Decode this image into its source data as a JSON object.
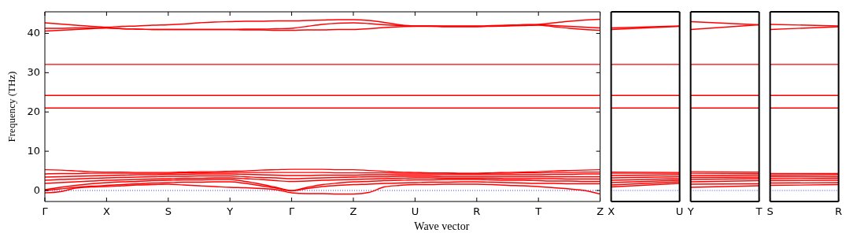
{
  "chart_data": [
    {
      "type": "line",
      "xlabel": "Wave vector",
      "ylabel": "Frequency (THz)",
      "ylim": [
        -2.8,
        45.5
      ],
      "yticks": [
        0,
        10,
        20,
        30,
        40
      ],
      "categories": [
        "Γ",
        null,
        null,
        null,
        "X",
        null,
        null,
        null,
        "S",
        null,
        null,
        null,
        "Y",
        null,
        null,
        null,
        "Γ",
        null,
        null,
        null,
        "Z",
        null,
        null,
        null,
        "U",
        null,
        null,
        null,
        "R",
        null,
        null,
        null,
        "T",
        null,
        null,
        null,
        "Z"
      ],
      "ref_lines": [
        {
          "axis": "y",
          "value": 0,
          "color": "#0000ff",
          "line_style": "dotted"
        }
      ],
      "series": [
        {
          "color": "#ff0000",
          "values": [
            42.7,
            42.4,
            42.1,
            41.8,
            41.6,
            41.8,
            41.9,
            42.1,
            42.2,
            42.4,
            42.7,
            42.9,
            43.0,
            43.1,
            43.1,
            43.2,
            43.2,
            43.3,
            43.4,
            43.5,
            43.5,
            43.3,
            42.8,
            42.2,
            41.9,
            41.9,
            41.8,
            41.8,
            41.8,
            41.9,
            42.0,
            42.2,
            42.3,
            42.7,
            43.1,
            43.4,
            43.6
          ]
        },
        {
          "color": "#ff0000",
          "values": [
            41.3,
            41.3,
            41.4,
            41.4,
            41.4,
            41.2,
            41.1,
            41.0,
            41.0,
            41.0,
            41.0,
            41.0,
            41.0,
            41.1,
            41.1,
            41.2,
            41.3,
            41.8,
            42.3,
            42.6,
            42.7,
            42.5,
            42.2,
            42.0,
            41.9,
            41.9,
            41.9,
            41.9,
            41.9,
            42.0,
            42.1,
            42.2,
            42.2,
            42.0,
            41.8,
            41.6,
            41.4
          ]
        },
        {
          "color": "#ff0000",
          "values": [
            40.6,
            40.8,
            41.0,
            41.2,
            41.4,
            41.2,
            41.1,
            41.0,
            41.0,
            41.0,
            41.0,
            41.0,
            41.0,
            40.9,
            40.9,
            40.8,
            40.8,
            40.9,
            40.9,
            41.0,
            41.0,
            41.2,
            41.5,
            41.7,
            41.8,
            41.8,
            41.7,
            41.7,
            41.7,
            41.8,
            41.9,
            42.0,
            42.1,
            41.7,
            41.3,
            41.0,
            40.8
          ]
        },
        {
          "color": "#ff0000",
          "values": [
            32.1,
            32.1,
            32.1,
            32.1,
            32.1,
            32.1,
            32.1,
            32.1,
            32.1,
            32.1,
            32.1,
            32.1,
            32.1,
            32.1,
            32.1,
            32.1,
            32.1,
            32.1,
            32.1,
            32.1,
            32.1,
            32.1,
            32.1,
            32.1,
            32.1,
            32.1,
            32.1,
            32.1,
            32.1,
            32.1,
            32.1,
            32.1,
            32.1,
            32.1,
            32.1,
            32.1,
            32.1
          ]
        },
        {
          "color": "#ff0000",
          "values": [
            24.2,
            24.2,
            24.2,
            24.2,
            24.2,
            24.2,
            24.2,
            24.2,
            24.2,
            24.2,
            24.2,
            24.2,
            24.2,
            24.2,
            24.2,
            24.2,
            24.2,
            24.2,
            24.2,
            24.2,
            24.2,
            24.2,
            24.2,
            24.2,
            24.2,
            24.2,
            24.2,
            24.2,
            24.2,
            24.2,
            24.2,
            24.2,
            24.2,
            24.2,
            24.2,
            24.2,
            24.2
          ]
        },
        {
          "color": "#ff0000",
          "values": [
            21.0,
            21.0,
            21.0,
            21.0,
            21.0,
            21.0,
            21.0,
            21.0,
            21.0,
            21.0,
            21.0,
            21.0,
            21.0,
            21.0,
            21.0,
            21.0,
            21.0,
            21.0,
            21.0,
            21.0,
            21.0,
            21.0,
            21.0,
            21.0,
            21.0,
            21.0,
            21.0,
            21.0,
            21.0,
            21.0,
            21.0,
            21.0,
            21.0,
            21.0,
            21.0,
            21.0,
            21.0
          ]
        },
        {
          "color": "#ff0000",
          "values": [
            -0.6,
            -0.3,
            0.6,
            0.9,
            1.0,
            1.2,
            1.4,
            1.5,
            1.6,
            1.4,
            1.2,
            1.0,
            0.8,
            0.7,
            0.5,
            0.2,
            -0.6,
            -0.8,
            -0.8,
            -0.9,
            -0.9,
            -0.5,
            0.9,
            1.3,
            1.5,
            1.5,
            1.6,
            1.6,
            1.6,
            1.5,
            1.3,
            1.2,
            1.0,
            0.7,
            0.4,
            0.0,
            -0.9
          ]
        },
        {
          "color": "#ff0000",
          "values": [
            0.0,
            0.4,
            0.8,
            1.1,
            1.3,
            1.5,
            1.7,
            1.9,
            2.0,
            2.1,
            2.1,
            2.2,
            2.2,
            1.8,
            1.2,
            0.6,
            -0.1,
            0.5,
            1.0,
            1.3,
            1.5,
            1.6,
            1.8,
            1.9,
            2.0,
            2.1,
            2.1,
            2.2,
            2.2,
            2.1,
            2.0,
            1.9,
            1.8,
            1.8,
            1.7,
            1.7,
            1.7
          ]
        },
        {
          "color": "#ff0000",
          "values": [
            0.2,
            0.8,
            1.3,
            1.7,
            2.0,
            2.2,
            2.3,
            2.5,
            2.6,
            2.7,
            2.7,
            2.8,
            2.8,
            2.3,
            1.6,
            0.8,
            0.0,
            0.8,
            1.5,
            1.9,
            2.2,
            2.3,
            2.5,
            2.6,
            2.7,
            2.7,
            2.8,
            2.8,
            2.8,
            2.7,
            2.6,
            2.6,
            2.5,
            2.4,
            2.4,
            2.3,
            2.3
          ]
        },
        {
          "color": "#ff0000",
          "values": [
            1.8,
            2.0,
            2.2,
            2.4,
            2.6,
            2.7,
            2.8,
            2.9,
            3.0,
            3.1,
            3.1,
            3.2,
            3.2,
            3.0,
            2.8,
            2.5,
            2.3,
            2.4,
            2.6,
            2.7,
            2.8,
            2.9,
            3.0,
            3.1,
            3.2,
            3.2,
            3.1,
            3.1,
            3.1,
            3.1,
            3.0,
            3.0,
            3.0,
            3.0,
            2.9,
            2.9,
            2.9
          ]
        },
        {
          "color": "#ff0000",
          "values": [
            2.6,
            2.8,
            2.9,
            3.1,
            3.2,
            3.3,
            3.4,
            3.5,
            3.6,
            3.6,
            3.7,
            3.7,
            3.7,
            3.5,
            3.3,
            3.2,
            3.0,
            3.1,
            3.2,
            3.3,
            3.4,
            3.5,
            3.5,
            3.6,
            3.6,
            3.6,
            3.5,
            3.5,
            3.5,
            3.5,
            3.5,
            3.5,
            3.5,
            3.5,
            3.5,
            3.5,
            3.5
          ]
        },
        {
          "color": "#ff0000",
          "values": [
            3.4,
            3.5,
            3.6,
            3.7,
            3.8,
            3.9,
            4.0,
            4.0,
            4.1,
            4.1,
            4.2,
            4.2,
            4.2,
            4.1,
            4.0,
            3.9,
            3.8,
            3.8,
            3.9,
            3.9,
            3.9,
            4.0,
            4.0,
            4.0,
            4.0,
            4.0,
            4.0,
            4.0,
            4.0,
            4.0,
            4.0,
            4.0,
            4.0,
            4.1,
            4.1,
            4.2,
            4.2
          ]
        },
        {
          "color": "#ff0000",
          "values": [
            4.2,
            4.3,
            4.3,
            4.4,
            4.4,
            4.4,
            4.4,
            4.4,
            4.4,
            4.5,
            4.5,
            4.6,
            4.6,
            4.6,
            4.6,
            4.6,
            4.6,
            4.6,
            4.6,
            4.5,
            4.5,
            4.5,
            4.5,
            4.4,
            4.4,
            4.4,
            4.4,
            4.3,
            4.3,
            4.4,
            4.4,
            4.5,
            4.5,
            4.6,
            4.6,
            4.7,
            4.7
          ]
        },
        {
          "color": "#ff0000",
          "values": [
            5.3,
            5.2,
            5.0,
            4.8,
            4.7,
            4.7,
            4.6,
            4.6,
            4.6,
            4.7,
            4.8,
            4.8,
            4.9,
            5.0,
            5.2,
            5.3,
            5.4,
            5.4,
            5.4,
            5.3,
            5.3,
            5.1,
            4.9,
            4.7,
            4.6,
            4.5,
            4.5,
            4.4,
            4.4,
            4.5,
            4.6,
            4.7,
            4.8,
            5.0,
            5.1,
            5.2,
            5.3
          ]
        }
      ]
    },
    {
      "type": "line",
      "tick_labels": "x",
      "ylim": [
        -2.8,
        45.5
      ],
      "categories": [
        "X",
        "U"
      ],
      "ref_lines": [
        {
          "axis": "y",
          "value": 0,
          "color": "#0000ff",
          "line_style": "dotted"
        }
      ],
      "series": [
        {
          "color": "#ff0000",
          "values": [
            41.4,
            41.9
          ]
        },
        {
          "color": "#ff0000",
          "values": [
            41.0,
            41.8
          ]
        },
        {
          "color": "#ff0000",
          "values": [
            32.1,
            32.1
          ]
        },
        {
          "color": "#ff0000",
          "values": [
            24.2,
            24.2
          ]
        },
        {
          "color": "#ff0000",
          "values": [
            21.0,
            21.0
          ]
        },
        {
          "color": "#ff0000",
          "values": [
            0.9,
            1.8
          ]
        },
        {
          "color": "#ff0000",
          "values": [
            1.4,
            2.2
          ]
        },
        {
          "color": "#ff0000",
          "values": [
            2.0,
            2.6
          ]
        },
        {
          "color": "#ff0000",
          "values": [
            2.6,
            3.0
          ]
        },
        {
          "color": "#ff0000",
          "values": [
            3.2,
            3.5
          ]
        },
        {
          "color": "#ff0000",
          "values": [
            3.8,
            4.0
          ]
        },
        {
          "color": "#ff0000",
          "values": [
            4.4,
            4.4
          ]
        },
        {
          "color": "#ff0000",
          "values": [
            4.7,
            4.6
          ]
        }
      ]
    },
    {
      "type": "line",
      "tick_labels": "x",
      "ylim": [
        -2.8,
        45.5
      ],
      "categories": [
        "Y",
        "T"
      ],
      "ref_lines": [
        {
          "axis": "y",
          "value": 0,
          "color": "#0000ff",
          "line_style": "dotted"
        }
      ],
      "series": [
        {
          "color": "#ff0000",
          "values": [
            43.0,
            42.2
          ]
        },
        {
          "color": "#ff0000",
          "values": [
            41.0,
            42.2
          ]
        },
        {
          "color": "#ff0000",
          "values": [
            32.1,
            32.1
          ]
        },
        {
          "color": "#ff0000",
          "values": [
            24.2,
            24.2
          ]
        },
        {
          "color": "#ff0000",
          "values": [
            21.0,
            21.0
          ]
        },
        {
          "color": "#ff0000",
          "values": [
            0.8,
            1.2
          ]
        },
        {
          "color": "#ff0000",
          "values": [
            1.6,
            1.7
          ]
        },
        {
          "color": "#ff0000",
          "values": [
            2.2,
            2.5
          ]
        },
        {
          "color": "#ff0000",
          "values": [
            2.8,
            3.0
          ]
        },
        {
          "color": "#ff0000",
          "values": [
            3.3,
            3.4
          ]
        },
        {
          "color": "#ff0000",
          "values": [
            3.8,
            3.9
          ]
        },
        {
          "color": "#ff0000",
          "values": [
            4.4,
            4.3
          ]
        },
        {
          "color": "#ff0000",
          "values": [
            4.8,
            4.7
          ]
        }
      ]
    },
    {
      "type": "line",
      "tick_labels": "x",
      "ylim": [
        -2.8,
        45.5
      ],
      "categories": [
        "S",
        "R"
      ],
      "ref_lines": [
        {
          "axis": "y",
          "value": 0,
          "color": "#0000ff",
          "line_style": "dotted"
        }
      ],
      "series": [
        {
          "color": "#ff0000",
          "values": [
            42.3,
            41.9
          ]
        },
        {
          "color": "#ff0000",
          "values": [
            41.0,
            41.7
          ]
        },
        {
          "color": "#ff0000",
          "values": [
            32.1,
            32.1
          ]
        },
        {
          "color": "#ff0000",
          "values": [
            24.2,
            24.2
          ]
        },
        {
          "color": "#ff0000",
          "values": [
            21.0,
            21.0
          ]
        },
        {
          "color": "#ff0000",
          "values": [
            1.3,
            1.5
          ]
        },
        {
          "color": "#ff0000",
          "values": [
            1.9,
            2.0
          ]
        },
        {
          "color": "#ff0000",
          "values": [
            2.5,
            2.6
          ]
        },
        {
          "color": "#ff0000",
          "values": [
            3.0,
            3.1
          ]
        },
        {
          "color": "#ff0000",
          "values": [
            3.5,
            3.5
          ]
        },
        {
          "color": "#ff0000",
          "values": [
            3.9,
            4.0
          ]
        },
        {
          "color": "#ff0000",
          "values": [
            4.3,
            4.3
          ]
        }
      ]
    }
  ]
}
